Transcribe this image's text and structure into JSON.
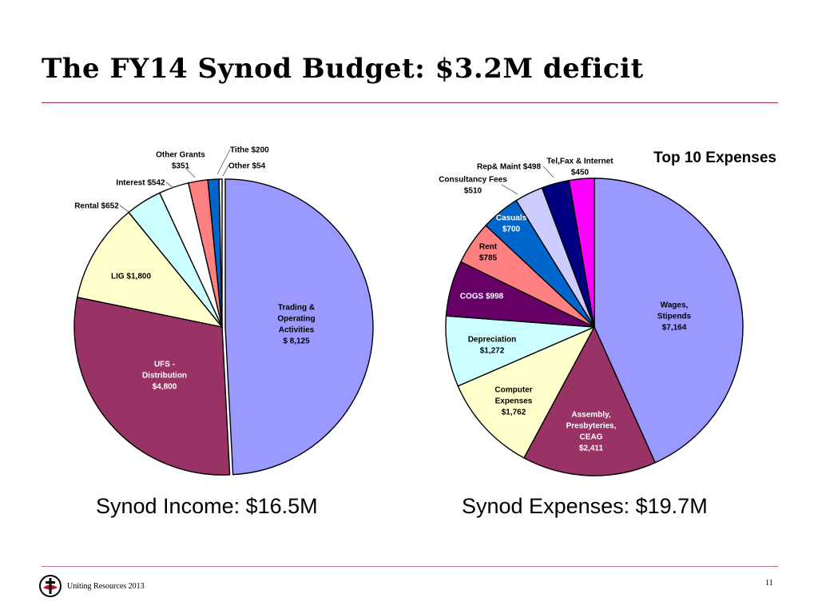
{
  "slide": {
    "title": "The FY14 Synod Budget: $3.2M deficit",
    "footer_text": "Uniting Resources 2013",
    "page_number": "11"
  },
  "chart_data": [
    {
      "type": "pie",
      "name": "income",
      "caption": "Synod Income: $16.5M",
      "title": "",
      "start": "top",
      "direction": "clockwise",
      "slices": [
        {
          "label": [
            "Trading &",
            "Operating",
            "Activities",
            "$ 8,125"
          ],
          "value": 8125,
          "color": "#9999ff",
          "label_color": "#000000",
          "inside": true
        },
        {
          "label": [
            "UFS -",
            "Distribution",
            "$4,800"
          ],
          "value": 4800,
          "color": "#993366",
          "label_color": "#ffffff",
          "inside": true
        },
        {
          "label": [
            "LIG $1,800"
          ],
          "value": 1800,
          "color": "#ffffcc",
          "label_color": "#000000",
          "inside": true
        },
        {
          "label": [
            "Rental $652"
          ],
          "value": 652,
          "color": "#ccffff",
          "label_color": "#000000",
          "inside": false
        },
        {
          "label": [
            "Interest $542"
          ],
          "value": 542,
          "color": "#ffffff",
          "label_color": "#000000",
          "inside": false
        },
        {
          "label": [
            "Other Grants",
            "$351"
          ],
          "value": 351,
          "color": "#ff8080",
          "label_color": "#000000",
          "inside": false
        },
        {
          "label": [
            "Tithe $200"
          ],
          "value": 200,
          "color": "#0066cc",
          "label_color": "#000000",
          "inside": false
        },
        {
          "label": [
            "Other $54"
          ],
          "value": 54,
          "color": "#ffffff",
          "label_color": "#000000",
          "inside": false
        }
      ]
    },
    {
      "type": "pie",
      "name": "expenses",
      "caption": "Synod Expenses: $19.7M",
      "title": "Top 10 Expenses",
      "start": "top",
      "direction": "clockwise",
      "slices": [
        {
          "label": [
            "Wages,",
            "Stipends",
            "$7,164"
          ],
          "value": 7164,
          "color": "#9999ff",
          "label_color": "#000000",
          "inside": true
        },
        {
          "label": [
            "Assembly,",
            "Presbyteries,",
            "CEAG",
            "$2,411"
          ],
          "value": 2411,
          "color": "#993366",
          "label_color": "#ffffff",
          "inside": true
        },
        {
          "label": [
            "Computer",
            "Expenses",
            "$1,762"
          ],
          "value": 1762,
          "color": "#ffffcc",
          "label_color": "#000000",
          "inside": true
        },
        {
          "label": [
            "Depreciation",
            "$1,272"
          ],
          "value": 1272,
          "color": "#ccffff",
          "label_color": "#000000",
          "inside": true
        },
        {
          "label": [
            "COGS $998"
          ],
          "value": 998,
          "color": "#660066",
          "label_color": "#ffffff",
          "inside": true
        },
        {
          "label": [
            "Rent",
            "$785"
          ],
          "value": 785,
          "color": "#ff8080",
          "label_color": "#000000",
          "inside": true
        },
        {
          "label": [
            "Casuals",
            "$700"
          ],
          "value": 700,
          "color": "#0066cc",
          "label_color": "#ffffff",
          "inside": true
        },
        {
          "label": [
            "Consultancy Fees",
            "$510"
          ],
          "value": 510,
          "color": "#ccccff",
          "label_color": "#000000",
          "inside": false
        },
        {
          "label": [
            "Rep& Maint $498"
          ],
          "value": 498,
          "color": "#000080",
          "label_color": "#000000",
          "inside": false
        },
        {
          "label": [
            "Tel,Fax & Internet",
            "$450"
          ],
          "value": 450,
          "color": "#ff00ff",
          "label_color": "#000000",
          "inside": false
        }
      ]
    }
  ]
}
